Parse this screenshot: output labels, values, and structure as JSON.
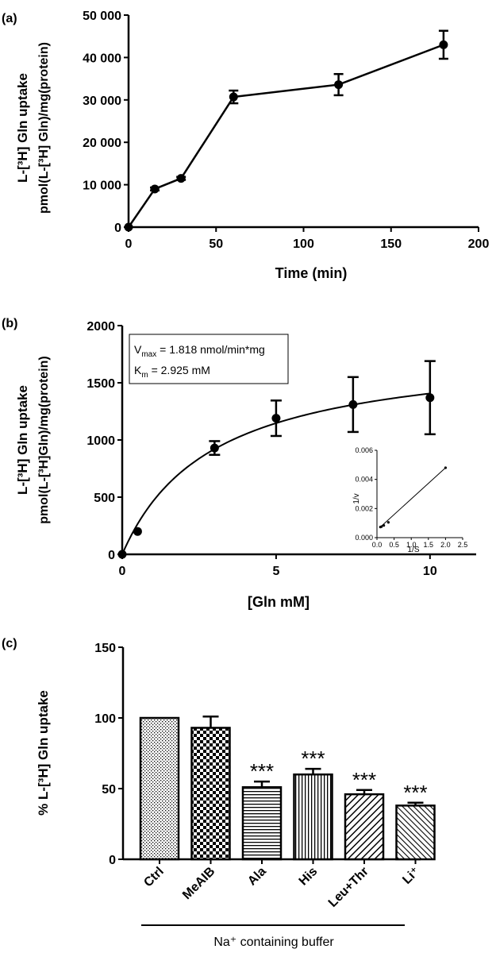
{
  "chart_data": [
    {
      "panel": "(a)",
      "type": "line",
      "ylabel": "L-[³H] Gln uptake",
      "ylabel2": "pmol(L-[³H] Gln)/mg(protein)",
      "xlabel": "Time (min)",
      "xlim": [
        0,
        200
      ],
      "ylim": [
        0,
        50000
      ],
      "xticks": [
        "0",
        "50",
        "100",
        "150",
        "200"
      ],
      "yticks": [
        "0",
        "10 000",
        "20 000",
        "30 000",
        "40 000",
        "50 000"
      ],
      "x": [
        0,
        15,
        30,
        60,
        120,
        180
      ],
      "y": [
        0,
        9000,
        11500,
        30700,
        33600,
        43000
      ],
      "err": [
        0,
        350,
        350,
        1500,
        2500,
        3300
      ]
    },
    {
      "panel": "(b)",
      "type": "scatter",
      "ylabel": "L-[³H] Gln uptake",
      "ylabel2": "pmol(L-[³H]Gln)/mg(protein)",
      "xlabel": "[Gln mM]",
      "xlim": [
        0,
        11.5
      ],
      "ylim": [
        0,
        2000
      ],
      "xticks": [
        "0",
        "5",
        "10"
      ],
      "yticks": [
        "0",
        "500",
        "1000",
        "1500",
        "2000"
      ],
      "x": [
        0,
        0.5,
        3,
        5,
        7.5,
        10
      ],
      "y": [
        0,
        200,
        930,
        1190,
        1310,
        1370
      ],
      "err": [
        0,
        0,
        60,
        155,
        240,
        320
      ],
      "annotation_line1": "V",
      "annotation_sub1": "max",
      "annotation_rest1": " = 1.818 nmol/min*mg",
      "annotation_line2": "K",
      "annotation_sub2": "m",
      "annotation_rest2": " = 2.925 mM",
      "fit": {
        "vmax": 1818,
        "km": 2.925
      },
      "inset": {
        "type": "line",
        "xlabel": "1/S",
        "ylabel": "1/v",
        "xlim": [
          0,
          2.5
        ],
        "ylim": [
          0,
          0.006
        ],
        "xticks": [
          "0.0",
          "0.5",
          "1.0",
          "1.5",
          "2.0",
          "2.5"
        ],
        "yticks": [
          "0.000",
          "0.002",
          "0.004",
          "0.006"
        ],
        "x": [
          0.1,
          0.133,
          0.2,
          0.333,
          2.0
        ],
        "y": [
          0.00073,
          0.00076,
          0.00084,
          0.00105,
          0.0048
        ]
      }
    },
    {
      "panel": "(c)",
      "type": "bar",
      "ylabel": "% L-[³H] Gln uptake",
      "ylim": [
        0,
        150
      ],
      "yticks": [
        "0",
        "50",
        "100",
        "150"
      ],
      "categories": [
        "Ctrl",
        "MeAIB",
        "Ala",
        "His",
        "Leu+Thr",
        "Li⁺"
      ],
      "values": [
        100,
        93,
        51,
        60,
        46,
        38
      ],
      "err": [
        0,
        8,
        4,
        4,
        3,
        2
      ],
      "significance": [
        "",
        "",
        "***",
        "***",
        "***",
        "***"
      ],
      "group_label": "Na⁺ containing buffer"
    }
  ]
}
